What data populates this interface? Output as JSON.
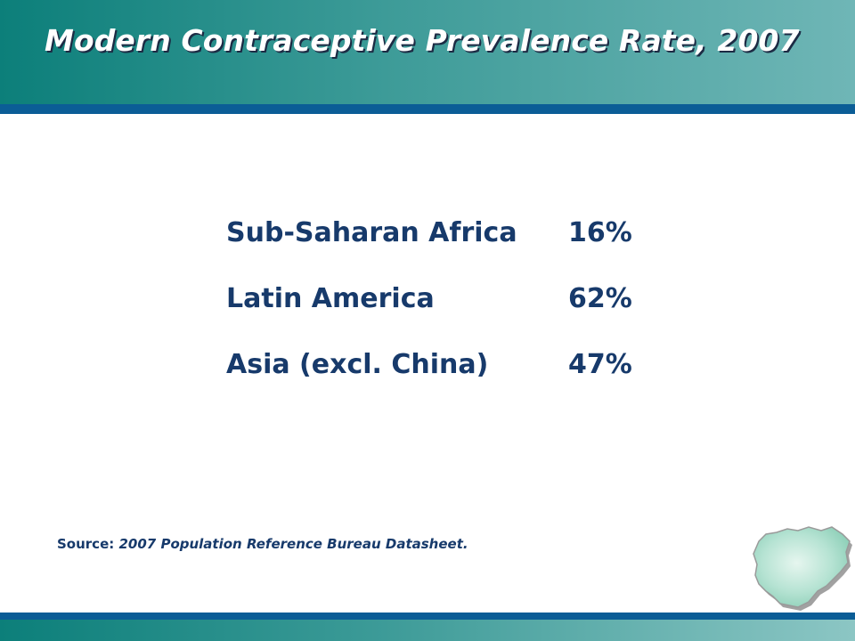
{
  "slide": {
    "title": "Modern Contraceptive Prevalence Rate, 2007",
    "stats": [
      {
        "label": "Sub-Saharan Africa",
        "value": "16%"
      },
      {
        "label": "Latin America",
        "value": "62%"
      },
      {
        "label": "Asia (excl. China)",
        "value": "47%"
      }
    ],
    "source_prefix": "Source:",
    "source_text": "2007 Population Reference Bureau Datasheet."
  },
  "colors": {
    "header_teal": "#0c7f7a",
    "accent_blue": "#0b5d96",
    "text_navy": "#173a6b",
    "map_fill": "#b6e3d3"
  },
  "icons": {
    "map": "nigeria-map-icon"
  }
}
